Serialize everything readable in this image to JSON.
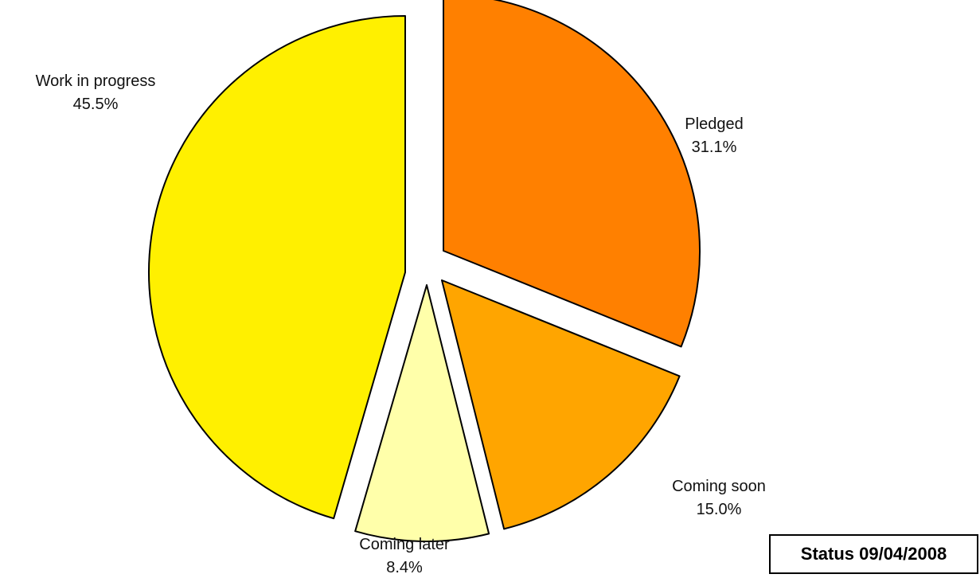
{
  "chart_data": {
    "type": "pie",
    "title": "",
    "exploded": true,
    "categories": [
      "Pledged",
      "Coming soon",
      "Coming later",
      "Work in progress"
    ],
    "values": [
      31.1,
      15.0,
      8.4,
      45.5
    ],
    "labels": [
      {
        "name": "Pledged",
        "percent": "31.1%"
      },
      {
        "name": "Coming soon",
        "percent": "15.0%"
      },
      {
        "name": "Coming later",
        "percent": "8.4%"
      },
      {
        "name": "Work in progress",
        "percent": "45.5%"
      }
    ],
    "colors": [
      "#ff8000",
      "#ffa500",
      "#ffffaa",
      "#fff000"
    ],
    "stroke_color": "#000000"
  },
  "status": {
    "label": "Status 09/04/2008"
  }
}
